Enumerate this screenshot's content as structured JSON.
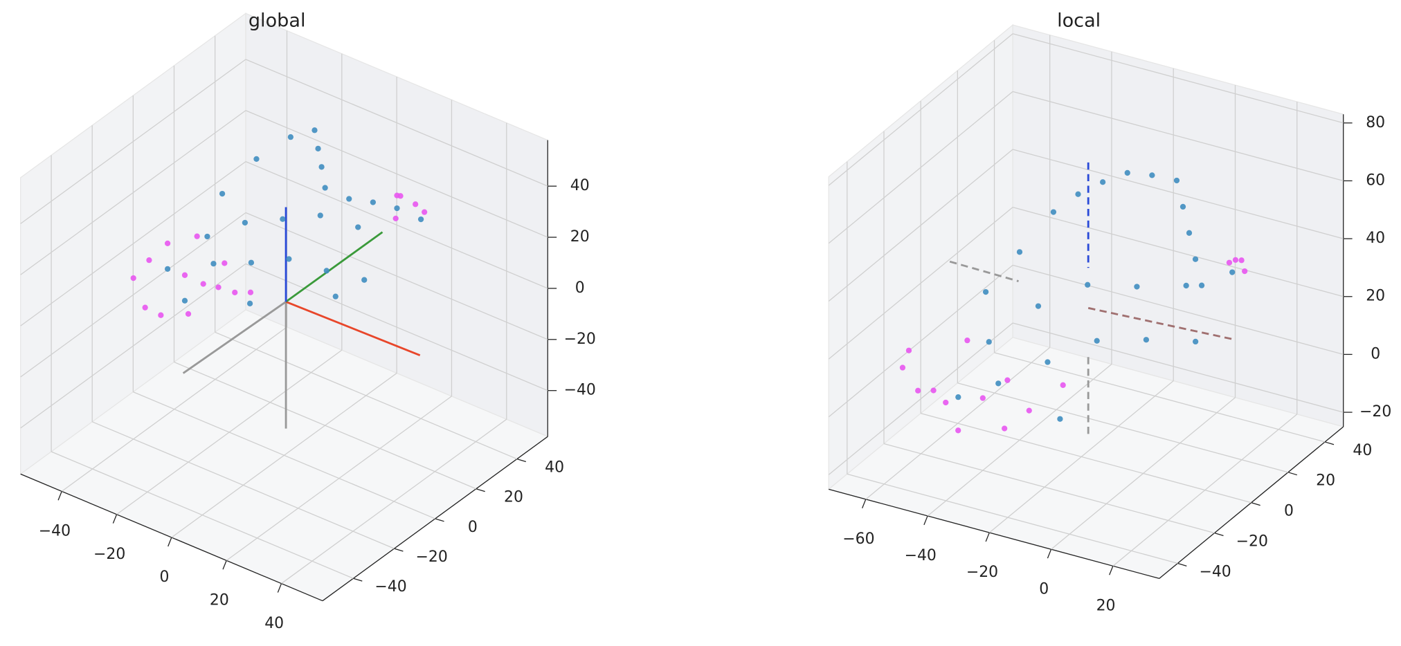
{
  "chart_data": [
    {
      "type": "scatter3d",
      "title": "global",
      "xlim": [
        -55,
        55
      ],
      "ylim": [
        -55,
        55
      ],
      "zlim": [
        -58,
        58
      ],
      "xticks": [
        {
          "value": -40,
          "label": "−40"
        },
        {
          "value": -20,
          "label": "−20"
        },
        0,
        20,
        40
      ],
      "yticks": [
        {
          "value": -40,
          "label": "−40"
        },
        {
          "value": -20,
          "label": "−20"
        },
        0,
        20,
        40
      ],
      "zticks": [
        {
          "value": -40,
          "label": "−40"
        },
        {
          "value": -20,
          "label": "−20"
        },
        0,
        20,
        40
      ],
      "grid": true,
      "series": [
        {
          "color": "#e855f0",
          "x": [
            -40,
            -38,
            -35,
            -32,
            -30,
            -28,
            -25,
            -22,
            -20,
            -18,
            -15,
            -12,
            -10,
            20,
            22,
            25,
            18,
            15
          ],
          "y": [
            -20,
            -15,
            -10,
            -25,
            -20,
            -5,
            -15,
            -10,
            -20,
            -5,
            -12,
            -8,
            -3,
            30,
            25,
            35,
            40,
            35
          ],
          "z": [
            5,
            10,
            15,
            0,
            -5,
            18,
            10,
            5,
            0,
            12,
            8,
            5,
            3,
            35,
            30,
            28,
            25,
            30
          ]
        },
        {
          "color": "#3f8dc0",
          "x": [
            -30,
            -25,
            -20,
            -15,
            -10,
            -5,
            0,
            5,
            10,
            15,
            20,
            -28,
            -18,
            -8,
            2,
            12,
            -22,
            -12,
            -2,
            8,
            18,
            -35,
            -25,
            -5,
            15
          ],
          "y": [
            10,
            20,
            30,
            35,
            30,
            25,
            20,
            25,
            30,
            35,
            40,
            0,
            5,
            10,
            15,
            20,
            -5,
            0,
            5,
            10,
            15,
            -10,
            -15,
            -10,
            5
          ],
          "z": [
            25,
            35,
            40,
            42,
            40,
            38,
            35,
            30,
            28,
            25,
            20,
            15,
            22,
            25,
            28,
            25,
            10,
            12,
            15,
            12,
            10,
            5,
            0,
            5,
            8
          ]
        }
      ]
    },
    {
      "type": "scatter3d",
      "title": "local",
      "xlim": [
        -72,
        35
      ],
      "ylim": [
        -50,
        50
      ],
      "zlim": [
        -25,
        83
      ],
      "xticks": [
        {
          "value": -60,
          "label": "−60"
        },
        {
          "value": -40,
          "label": "−40"
        },
        {
          "value": -20,
          "label": "−20"
        },
        0,
        20
      ],
      "yticks": [
        {
          "value": -40,
          "label": "−40"
        },
        {
          "value": -20,
          "label": "−20"
        },
        0,
        20,
        40
      ],
      "zticks": [
        {
          "value": -20,
          "label": "−20"
        },
        0,
        20,
        40,
        60,
        80
      ],
      "grid": true,
      "series": [
        {
          "color": "#e855f0",
          "x": [
            -60,
            -58,
            -55,
            -52,
            -50,
            -48,
            -45,
            -40,
            -35,
            -30,
            -25,
            -20,
            10,
            12,
            15,
            8
          ],
          "y": [
            -30,
            -25,
            -35,
            -20,
            -30,
            -15,
            -25,
            -20,
            -15,
            -25,
            -20,
            -10,
            30,
            35,
            25,
            40
          ],
          "z": [
            10,
            0,
            20,
            -5,
            5,
            15,
            -10,
            0,
            5,
            -5,
            0,
            5,
            35,
            30,
            40,
            30
          ]
        },
        {
          "color": "#3f8dc0",
          "x": [
            -45,
            -40,
            -35,
            -30,
            -25,
            -20,
            -15,
            -10,
            -5,
            0,
            5,
            10,
            -38,
            -28,
            -18,
            -8,
            2,
            -32,
            -22,
            -12,
            -2,
            8,
            -42,
            -15,
            5
          ],
          "y": [
            -10,
            0,
            10,
            15,
            20,
            25,
            30,
            35,
            30,
            25,
            20,
            15,
            -20,
            -10,
            0,
            10,
            20,
            -25,
            -15,
            -5,
            5,
            15,
            -30,
            -20,
            40
          ],
          "z": [
            30,
            40,
            50,
            55,
            58,
            60,
            58,
            55,
            50,
            45,
            40,
            35,
            20,
            30,
            35,
            32,
            30,
            10,
            15,
            20,
            18,
            15,
            5,
            0,
            25
          ]
        }
      ]
    }
  ]
}
